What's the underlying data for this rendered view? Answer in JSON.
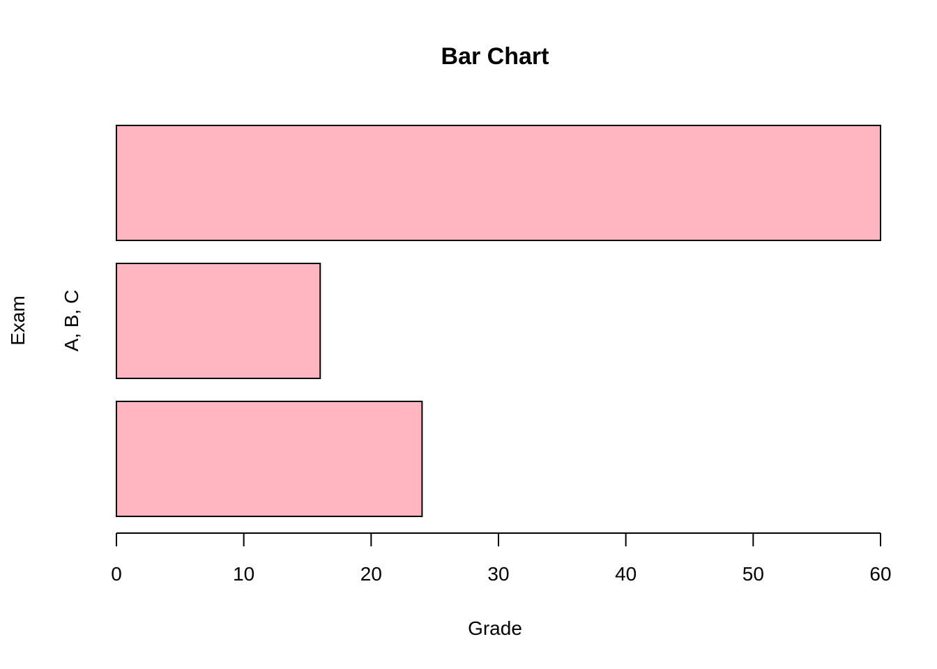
{
  "chart_data": {
    "type": "bar",
    "orientation": "horizontal",
    "title": "Bar Chart",
    "xlabel": "Grade",
    "ylabel": "Exam",
    "category_axis_label": "A, B, C",
    "values": [
      24,
      16,
      60
    ],
    "xlim": [
      0,
      60
    ],
    "x_ticks": [
      0,
      10,
      20,
      30,
      40,
      50,
      60
    ],
    "bar_color": "#FFB6C1",
    "grid": false,
    "legend": "none"
  }
}
